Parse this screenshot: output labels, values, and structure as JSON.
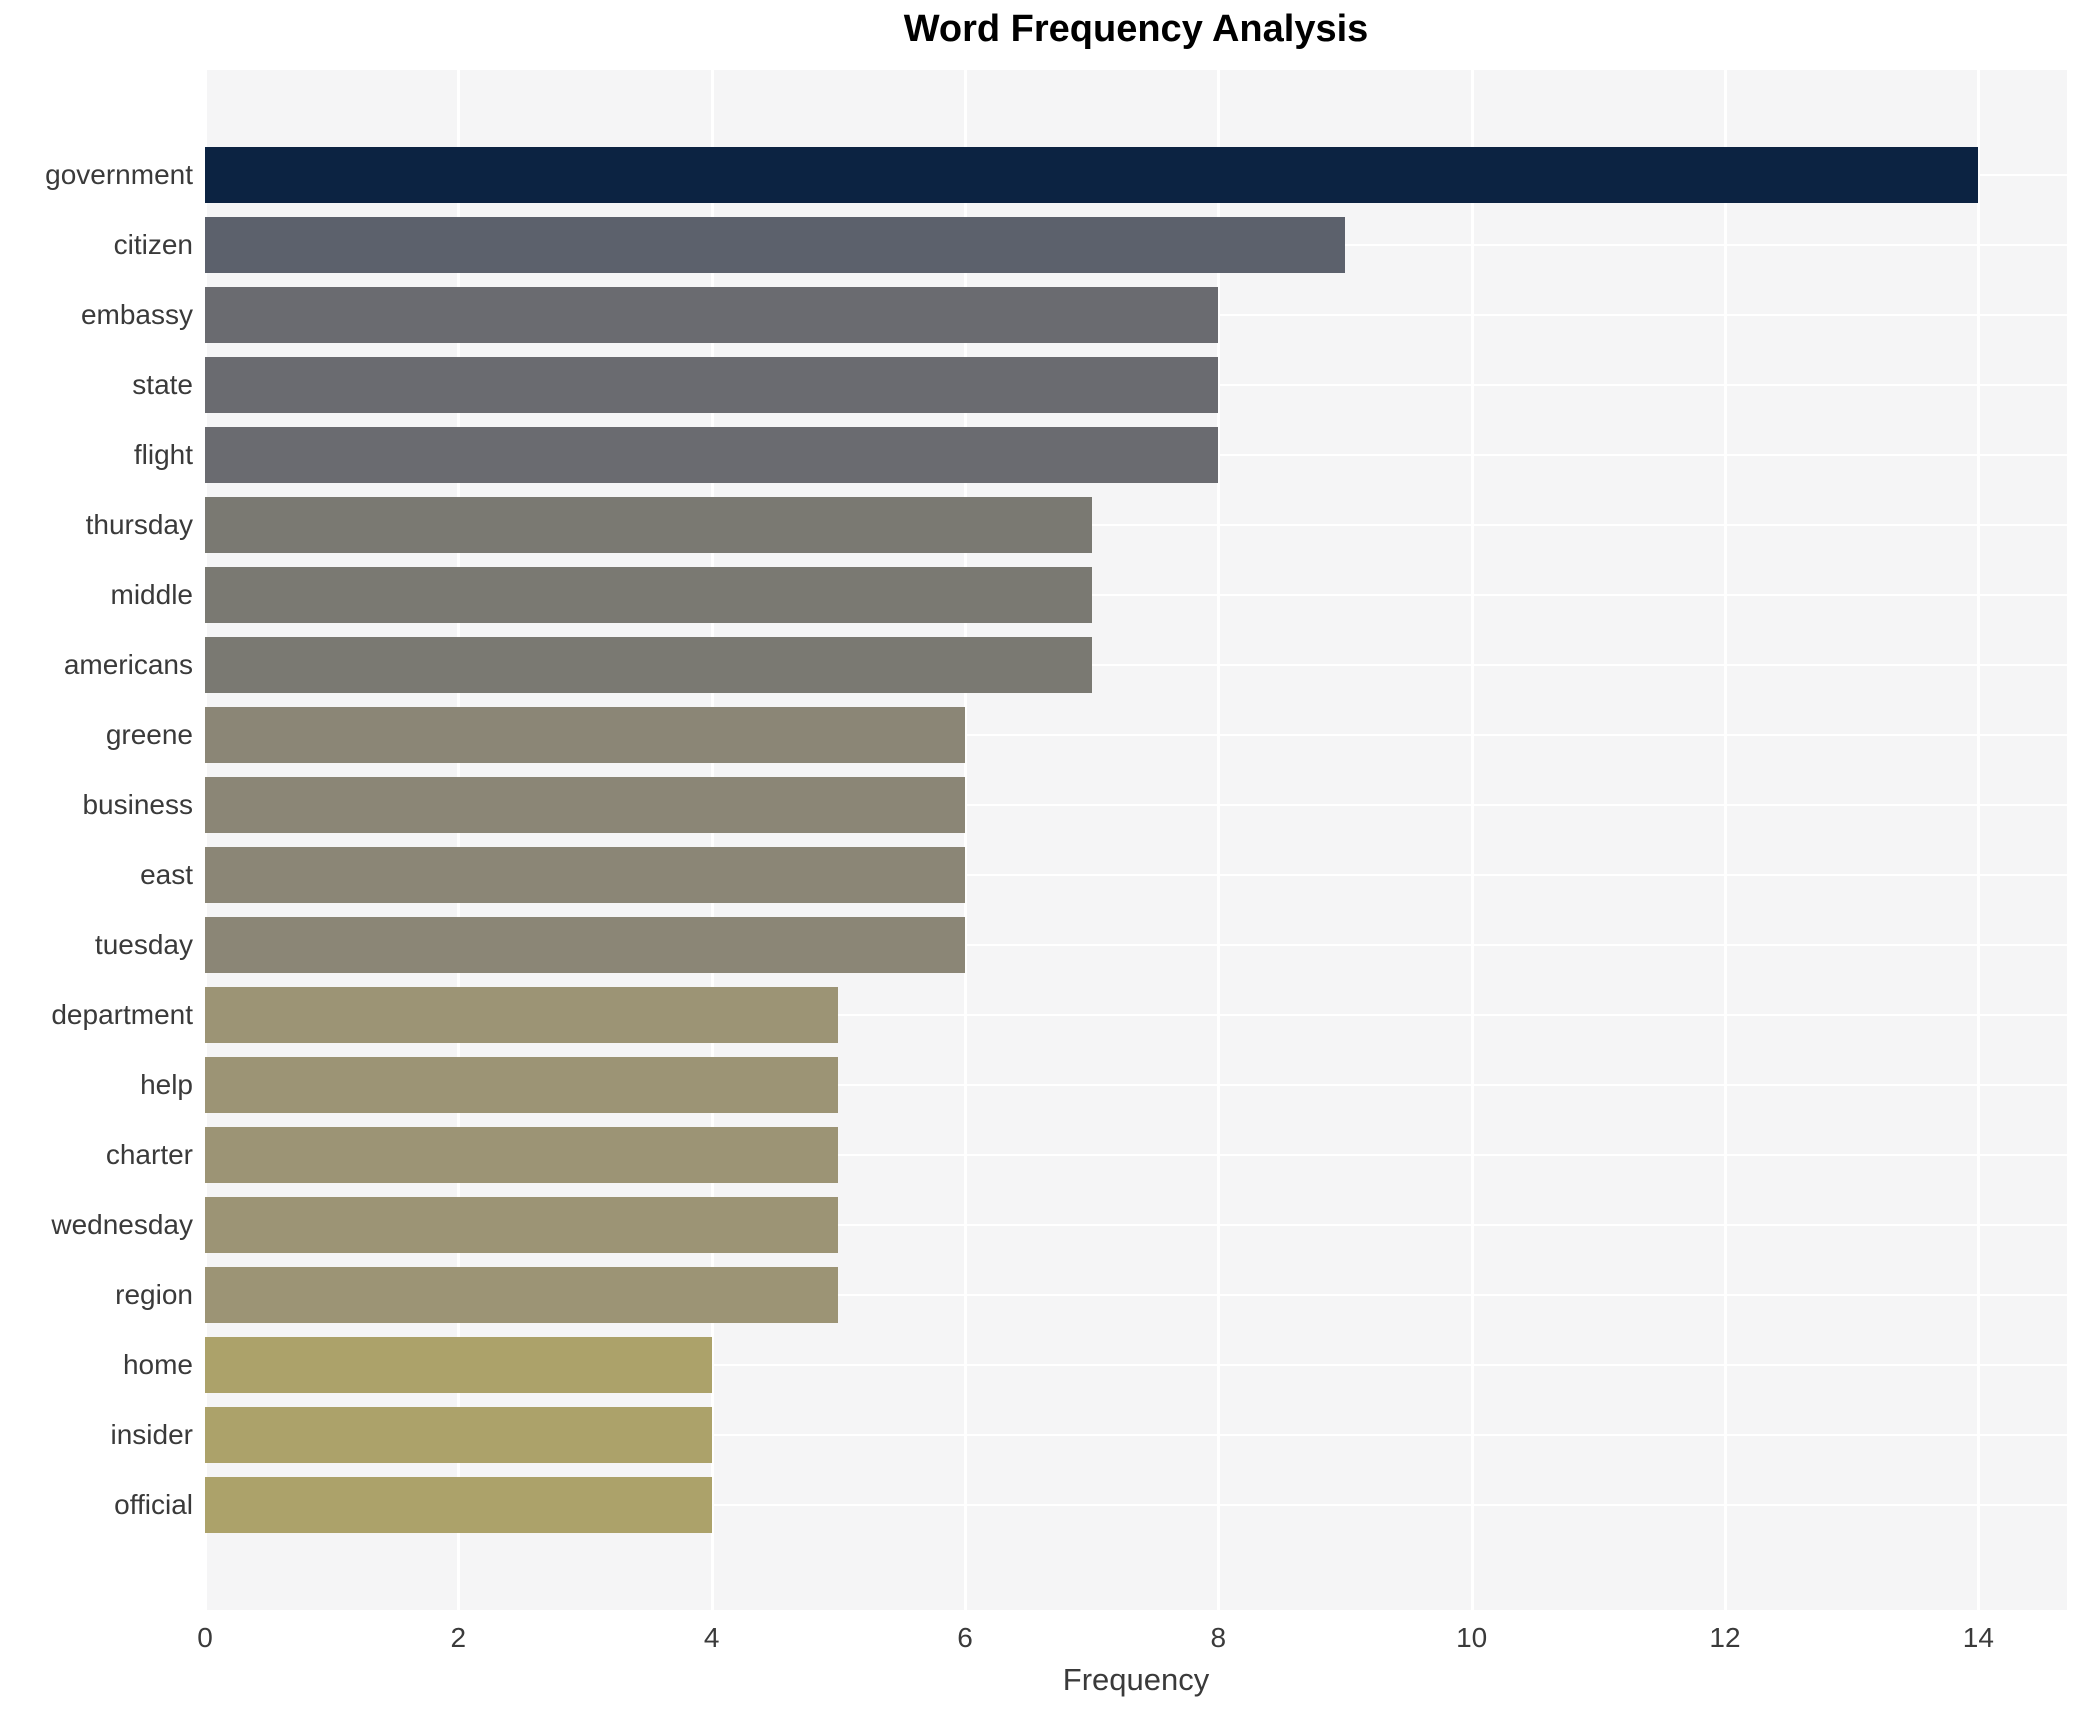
{
  "chart_data": {
    "type": "bar",
    "orientation": "horizontal",
    "title": "Word Frequency Analysis",
    "xlabel": "Frequency",
    "ylabel": "",
    "categories": [
      "government",
      "citizen",
      "embassy",
      "state",
      "flight",
      "thursday",
      "middle",
      "americans",
      "greene",
      "business",
      "east",
      "tuesday",
      "department",
      "help",
      "charter",
      "wednesday",
      "region",
      "home",
      "insider",
      "official"
    ],
    "values": [
      14,
      9,
      8,
      8,
      8,
      7,
      7,
      7,
      6,
      6,
      6,
      6,
      5,
      5,
      5,
      5,
      5,
      4,
      4,
      4
    ],
    "bar_colors": [
      "#0c2342",
      "#5c616c",
      "#6a6b70",
      "#6a6b70",
      "#6a6b70",
      "#7a7972",
      "#7a7972",
      "#7a7972",
      "#8b8676",
      "#8b8676",
      "#8b8676",
      "#8b8676",
      "#9c9475",
      "#9c9475",
      "#9c9475",
      "#9c9475",
      "#9c9475",
      "#aca26a",
      "#aca26a",
      "#aca26a"
    ],
    "xlim": [
      0,
      14.7
    ],
    "xticks": [
      0,
      2,
      4,
      6,
      8,
      10,
      12,
      14
    ],
    "grid": true,
    "grid_color": "#ffffff",
    "plot_bg": "#f5f5f6",
    "legend_position": "none"
  }
}
